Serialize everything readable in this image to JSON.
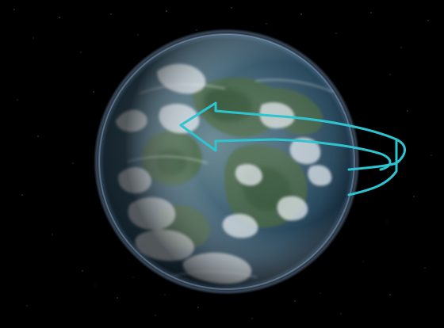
{
  "scene": {
    "subject": "planet-with-rotation-arrow",
    "background_color": "#000000",
    "planet_colors": {
      "ocean": "#1f4a6b",
      "land": "#4f6b3c",
      "cloud": "#e8edf2",
      "atmosphere": "#8fb8e6"
    },
    "arrow_color": "#2ec4cf"
  }
}
